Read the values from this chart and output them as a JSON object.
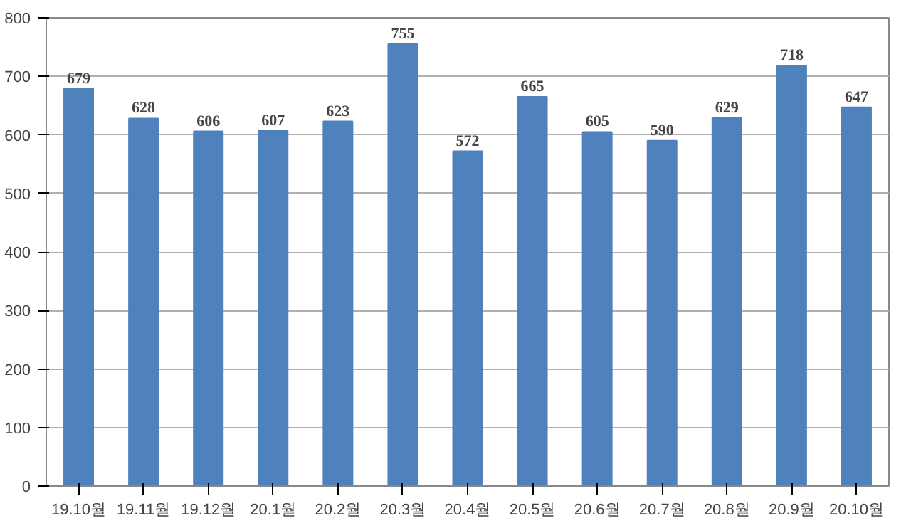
{
  "chart_data": {
    "type": "bar",
    "categories": [
      "19.10월",
      "19.11월",
      "19.12월",
      "20.1월",
      "20.2월",
      "20.3월",
      "20.4월",
      "20.5월",
      "20.6월",
      "20.7월",
      "20.8월",
      "20.9월",
      "20.10월"
    ],
    "values": [
      679,
      628,
      606,
      607,
      623,
      755,
      572,
      665,
      605,
      590,
      629,
      718,
      647
    ],
    "color": "#4f81bd",
    "ylim": [
      0,
      800
    ],
    "yticks": [
      0,
      100,
      200,
      300,
      400,
      500,
      600,
      700,
      800
    ],
    "grid": "y",
    "data_labels": true
  }
}
